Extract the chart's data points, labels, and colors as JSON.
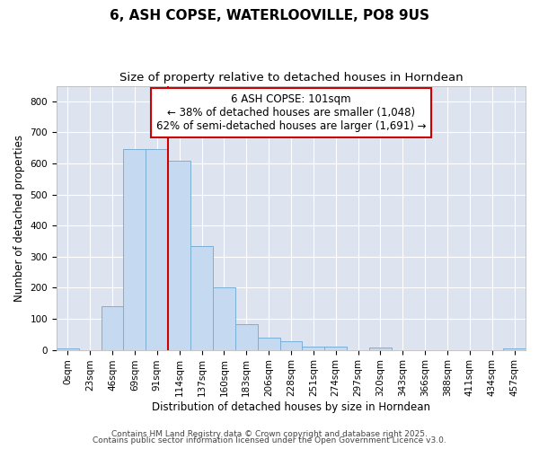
{
  "title_line1": "6, ASH COPSE, WATERLOOVILLE, PO8 9US",
  "title_line2": "Size of property relative to detached houses in Horndean",
  "xlabel": "Distribution of detached houses by size in Horndean",
  "ylabel": "Number of detached properties",
  "categories": [
    "0sqm",
    "23sqm",
    "46sqm",
    "69sqm",
    "91sqm",
    "114sqm",
    "137sqm",
    "160sqm",
    "183sqm",
    "206sqm",
    "228sqm",
    "251sqm",
    "274sqm",
    "297sqm",
    "320sqm",
    "343sqm",
    "366sqm",
    "388sqm",
    "411sqm",
    "434sqm",
    "457sqm"
  ],
  "values": [
    6,
    0,
    140,
    645,
    645,
    610,
    335,
    200,
    82,
    40,
    27,
    10,
    11,
    0,
    7,
    0,
    0,
    0,
    0,
    0,
    5
  ],
  "bar_color": "#c5d9f0",
  "bar_edge_color": "#7bafd4",
  "vline_x": 4.5,
  "vline_color": "#cc0000",
  "annotation_title": "6 ASH COPSE: 101sqm",
  "annotation_line2": "← 38% of detached houses are smaller (1,048)",
  "annotation_line3": "62% of semi-detached houses are larger (1,691) →",
  "annotation_box_color": "#cc0000",
  "ylim": [
    0,
    850
  ],
  "yticks": [
    0,
    100,
    200,
    300,
    400,
    500,
    600,
    700,
    800
  ],
  "fig_bg_color": "#ffffff",
  "plot_bg_color": "#dde4f0",
  "grid_color": "#ffffff",
  "footer_line1": "Contains HM Land Registry data © Crown copyright and database right 2025.",
  "footer_line2": "Contains public sector information licensed under the Open Government Licence v3.0.",
  "title_fontsize": 11,
  "subtitle_fontsize": 9.5,
  "annotation_fontsize": 8.5,
  "footer_fontsize": 6.5,
  "axis_label_fontsize": 8.5,
  "tick_fontsize": 7.5
}
